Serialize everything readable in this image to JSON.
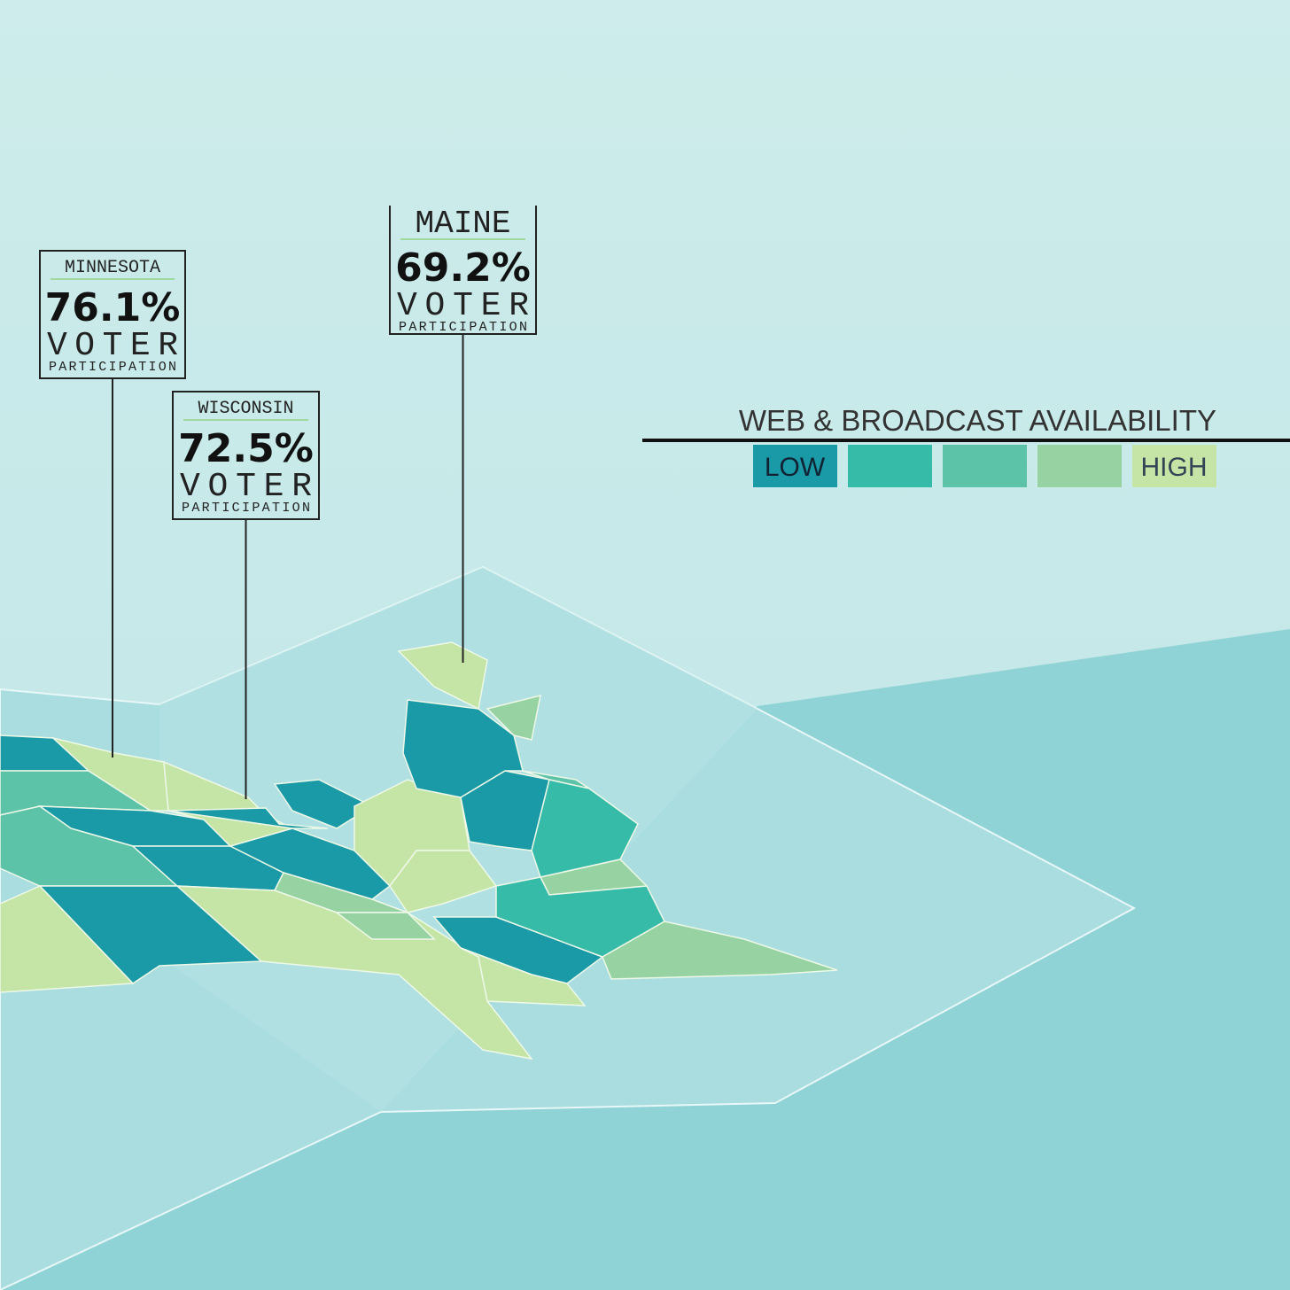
{
  "callouts": [
    {
      "state": "MINNESOTA",
      "value": "76.1%",
      "line1": "VOTER",
      "line2": "PARTICIPATION"
    },
    {
      "state": "WISCONSIN",
      "value": "72.5%",
      "line1": "VOTER",
      "line2": "PARTICIPATION"
    },
    {
      "state": "MAINE",
      "value": "69.2%",
      "line1": "VOTER",
      "line2": "PARTICIPATION"
    }
  ],
  "legend": {
    "title": "WEB & BROADCAST AVAILABILITY",
    "low": "LOW",
    "high": "HIGH",
    "colors": [
      "#1a9aa6",
      "#36bba8",
      "#5cc2a8",
      "#97d3a2",
      "#c5e5a6"
    ]
  }
}
